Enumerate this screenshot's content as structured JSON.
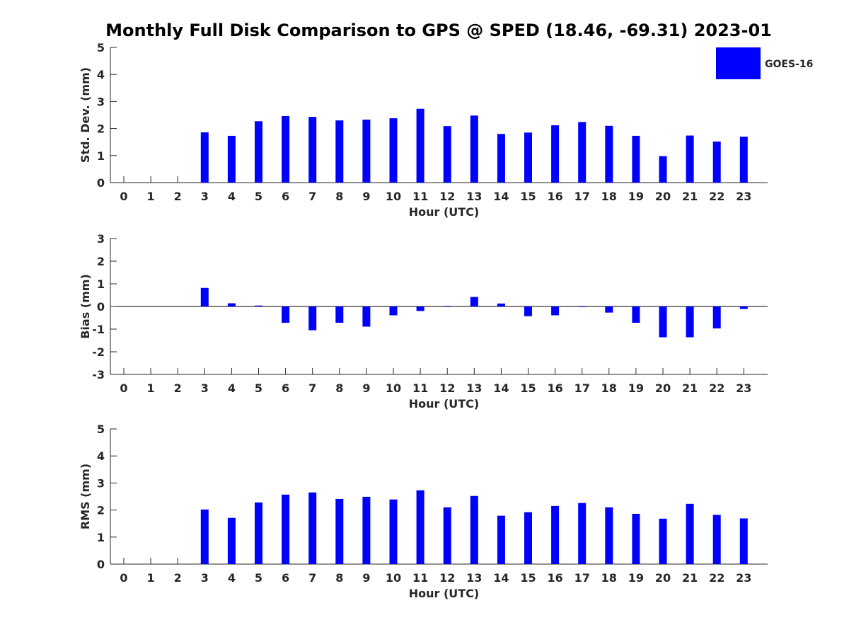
{
  "title": "Monthly Full Disk Comparison to GPS @ SPED (18.46, -69.31) 2023-01",
  "legend": {
    "label": "GOES-16",
    "color": "#0000ff"
  },
  "colors": {
    "bar": "#0000ff",
    "axis": "#262626"
  },
  "chart_data": [
    {
      "type": "bar",
      "ylabel": "Std. Dev. (mm)",
      "xlabel": "Hour (UTC)",
      "ylim": [
        0,
        5
      ],
      "yticks": [
        0,
        1,
        2,
        3,
        4,
        5
      ],
      "categories": [
        "0",
        "1",
        "2",
        "3",
        "4",
        "5",
        "6",
        "7",
        "8",
        "9",
        "10",
        "11",
        "12",
        "13",
        "14",
        "15",
        "16",
        "17",
        "18",
        "19",
        "20",
        "21",
        "22",
        "23"
      ],
      "series": [
        {
          "name": "GOES-16",
          "values": [
            null,
            null,
            null,
            1.86,
            1.73,
            2.27,
            2.46,
            2.43,
            2.3,
            2.33,
            2.38,
            2.73,
            2.09,
            2.48,
            1.8,
            1.85,
            2.12,
            2.24,
            2.1,
            1.73,
            0.98,
            1.74,
            1.52,
            1.7
          ]
        }
      ],
      "legend": "top-right",
      "grid": false
    },
    {
      "type": "bar",
      "ylabel": "Bias (mm)",
      "xlabel": "Hour (UTC)",
      "ylim": [
        -3,
        3
      ],
      "yticks": [
        -3,
        -2,
        -1,
        0,
        1,
        2,
        3
      ],
      "categories": [
        "0",
        "1",
        "2",
        "3",
        "4",
        "5",
        "6",
        "7",
        "8",
        "9",
        "10",
        "11",
        "12",
        "13",
        "14",
        "15",
        "16",
        "17",
        "18",
        "19",
        "20",
        "21",
        "22",
        "23"
      ],
      "series": [
        {
          "name": "GOES-16",
          "values": [
            null,
            null,
            null,
            0.82,
            0.14,
            0.04,
            -0.72,
            -1.05,
            -0.72,
            -0.89,
            -0.39,
            -0.2,
            -0.02,
            0.42,
            0.13,
            -0.43,
            -0.39,
            -0.02,
            -0.27,
            -0.72,
            -1.36,
            -1.36,
            -0.97,
            -0.11
          ]
        }
      ],
      "grid": false
    },
    {
      "type": "bar",
      "ylabel": "RMS (mm)",
      "xlabel": "Hour (UTC)",
      "ylim": [
        0,
        5
      ],
      "yticks": [
        0,
        1,
        2,
        3,
        4,
        5
      ],
      "categories": [
        "0",
        "1",
        "2",
        "3",
        "4",
        "5",
        "6",
        "7",
        "8",
        "9",
        "10",
        "11",
        "12",
        "13",
        "14",
        "15",
        "16",
        "17",
        "18",
        "19",
        "20",
        "21",
        "22",
        "23"
      ],
      "series": [
        {
          "name": "GOES-16",
          "values": [
            null,
            null,
            null,
            2.02,
            1.71,
            2.28,
            2.57,
            2.65,
            2.41,
            2.49,
            2.39,
            2.73,
            2.1,
            2.52,
            1.79,
            1.92,
            2.15,
            2.26,
            2.1,
            1.86,
            1.68,
            2.23,
            1.82,
            1.69
          ]
        }
      ],
      "grid": false
    }
  ]
}
